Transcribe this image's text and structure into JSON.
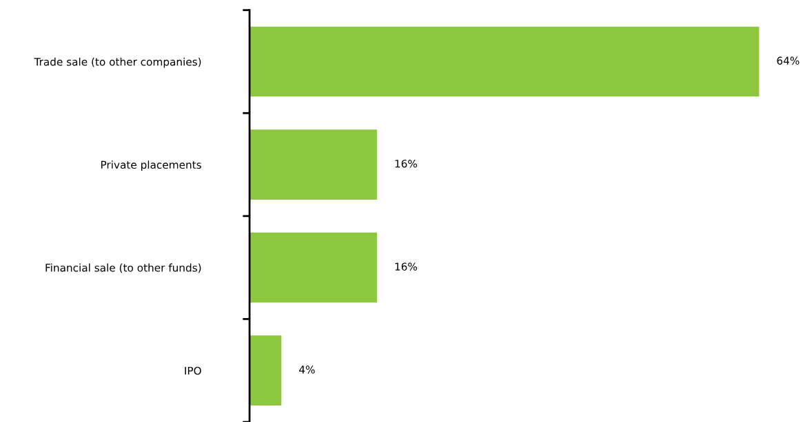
{
  "chart_data": {
    "type": "bar",
    "orientation": "horizontal",
    "categories": [
      "Trade sale (to other companies)",
      "Private placements",
      "Financial sale (to other funds)",
      "IPO"
    ],
    "values": [
      64,
      16,
      16,
      4
    ],
    "value_labels": [
      "64%",
      "16%",
      "16%",
      "4%"
    ],
    "color": "#8dc63f",
    "grid": false,
    "legend": false
  }
}
